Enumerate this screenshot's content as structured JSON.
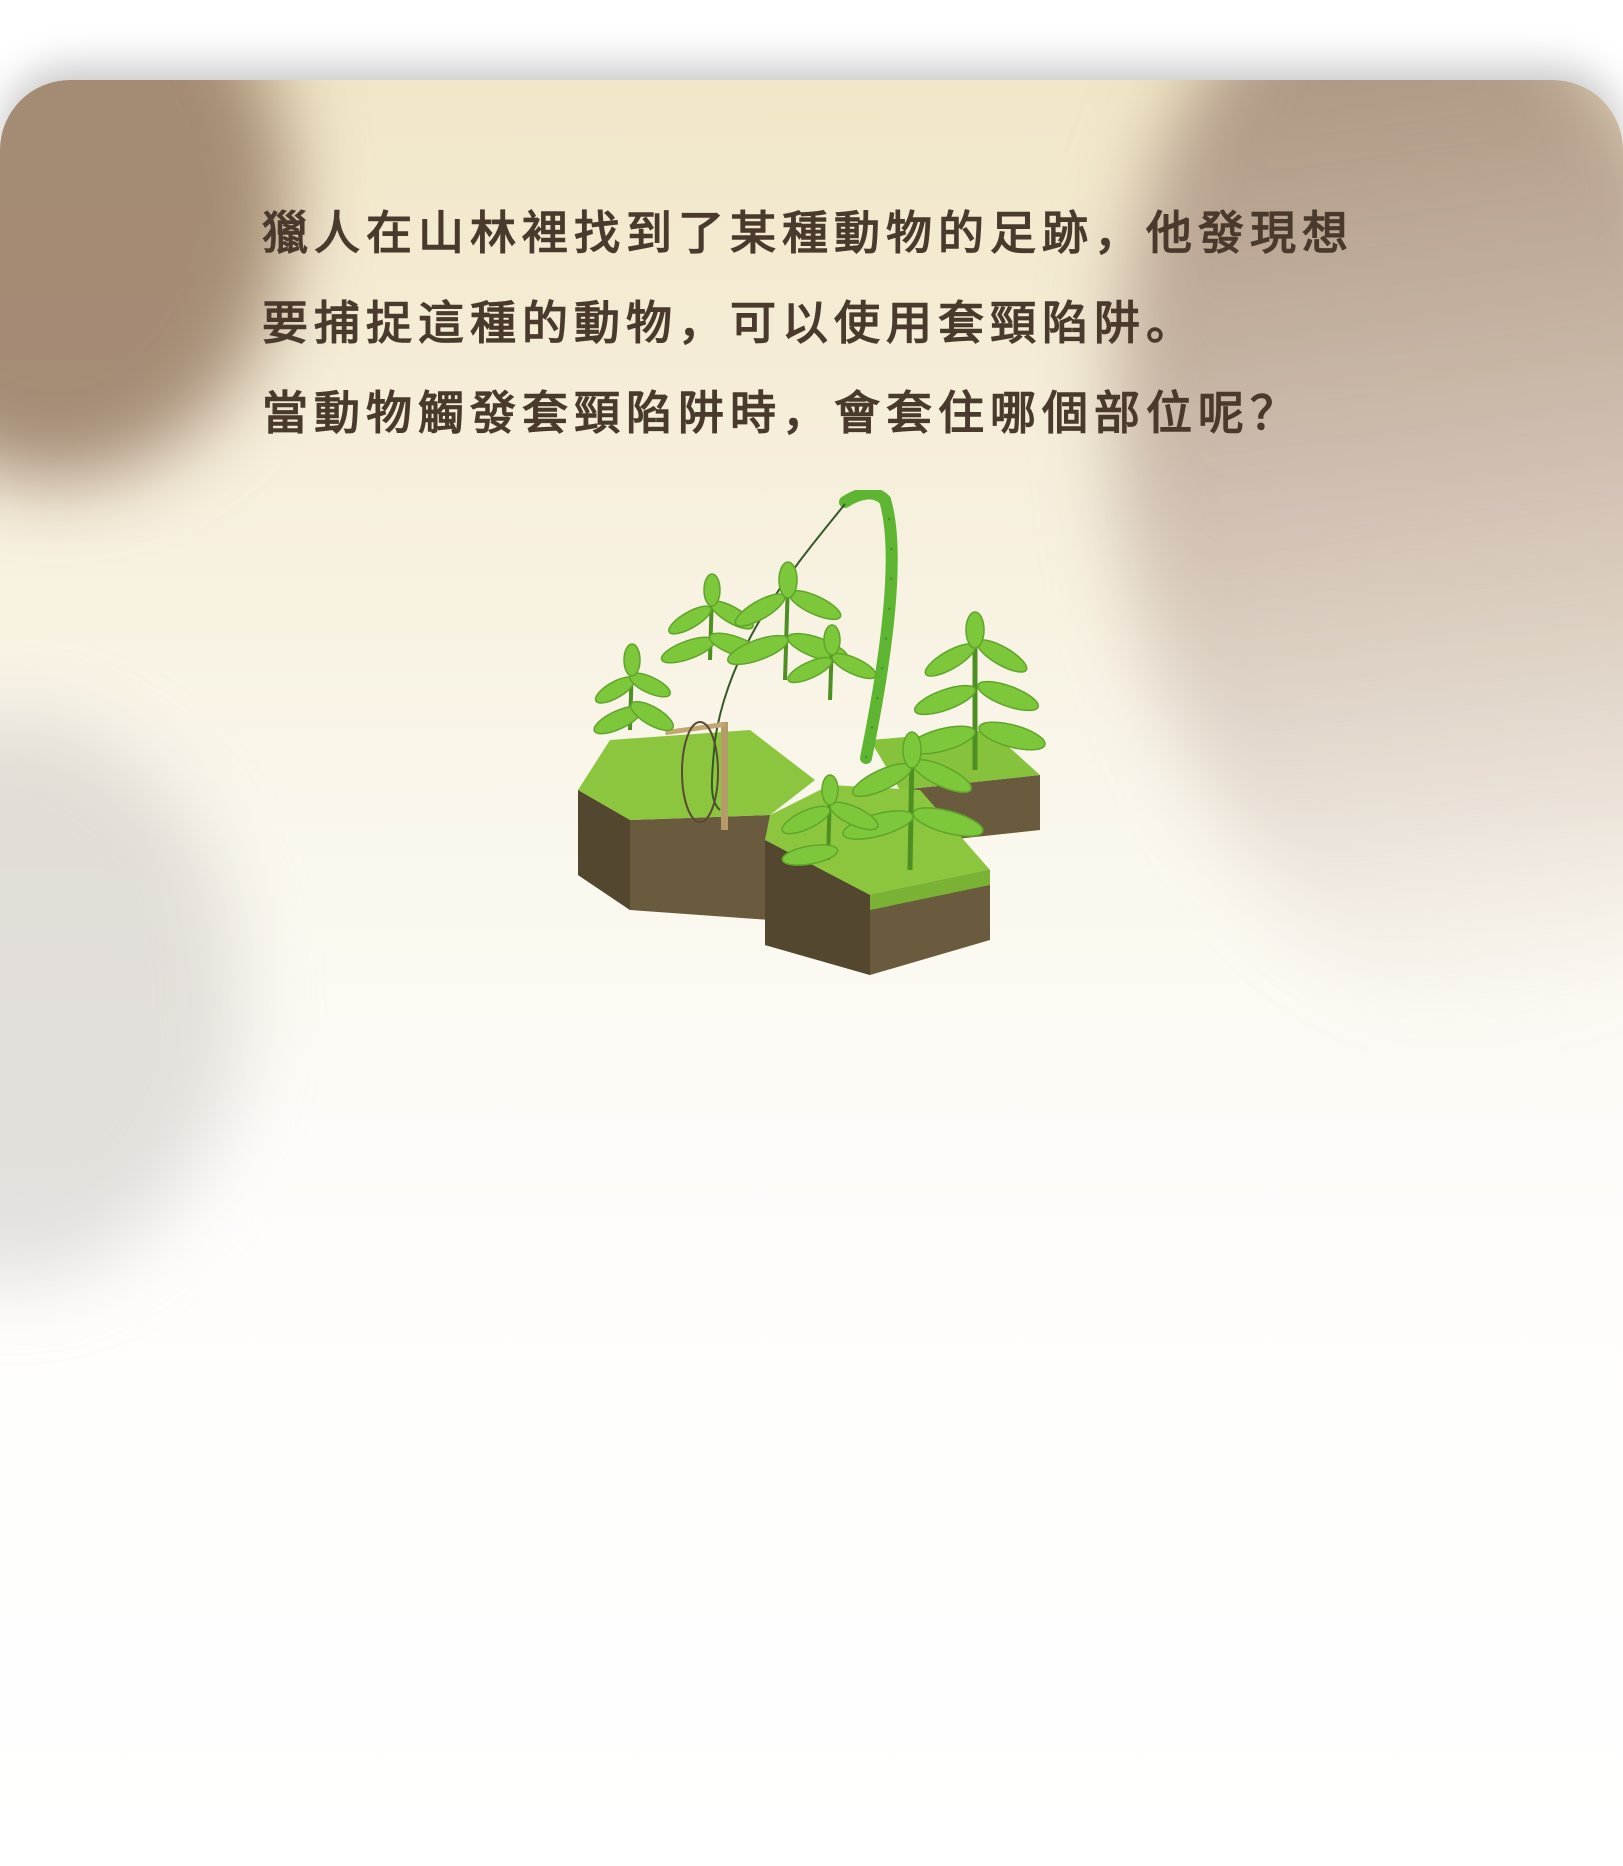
{
  "question": {
    "lines": [
      "獵人在山林裡找到了某種動物的足跡，他發現想",
      "要捕捉這種的動物，可以使用套頸陷阱。",
      "當動物觸發套頸陷阱時，會套住哪個部位呢？"
    ]
  },
  "illustration": {
    "icon": "snare-trap-forest-island-illustration"
  },
  "colors": {
    "text": "#4a3a2e",
    "grass_top": "#8cc63f",
    "soil": "#6b5b3e",
    "leaf": "#7cc83a",
    "bamboo": "#5db531"
  }
}
